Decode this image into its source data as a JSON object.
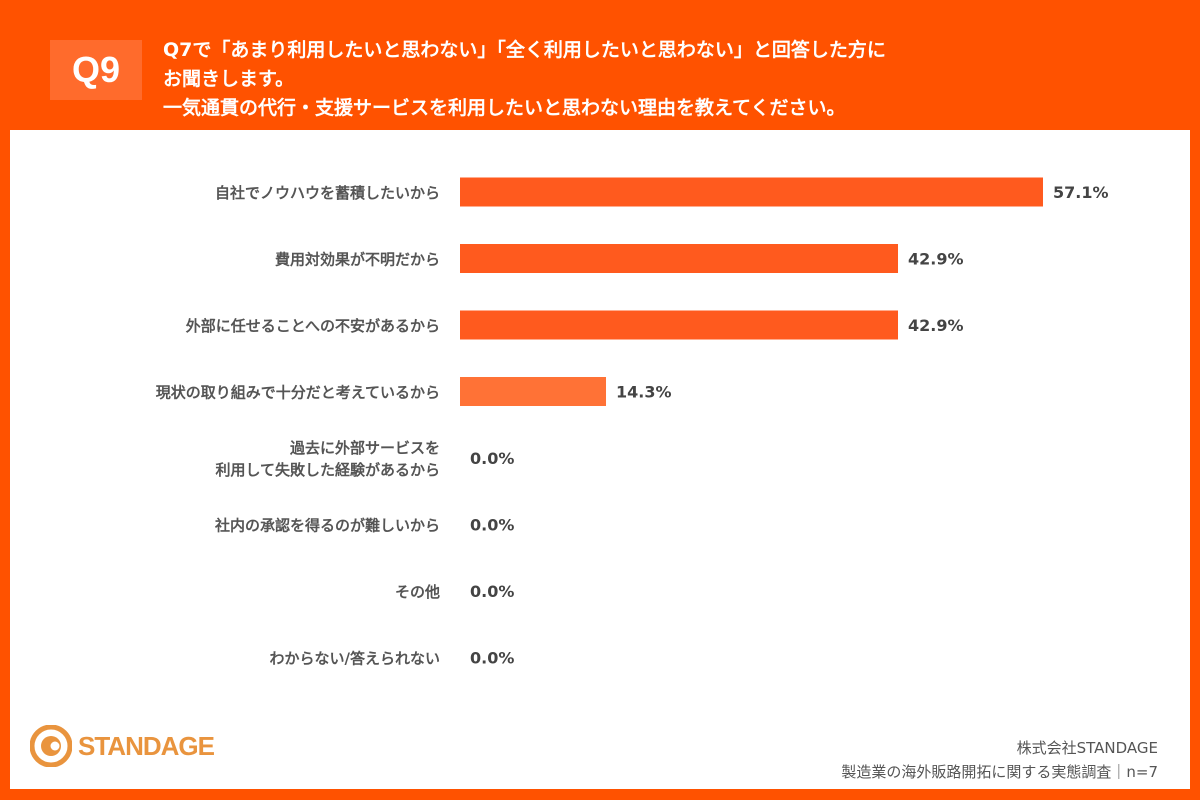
{
  "header": {
    "badge": "Q9",
    "lines": [
      "Q7で「あまり利用したいと思わない」「全く利用したいと思わない」と回答した方に",
      "お聞きします。",
      "一気通貫の代行・支援サービスを利用したいと思わない理由を教えてください。"
    ]
  },
  "footer": {
    "company": "株式会社STANDAGE",
    "survey": "製造業の海外販路開拓に関する実態調査｜n=7",
    "logo": "STANDAGE"
  },
  "colors": {
    "background": "#FF5200",
    "bar": "#FF5A1E",
    "bar_light": "#FF7236",
    "logo": "#E9943E"
  },
  "chart_data": {
    "type": "bar",
    "orientation": "horizontal",
    "categories": [
      [
        "自社でノウハウを蓄積したいから"
      ],
      [
        "費用対効果が不明だから"
      ],
      [
        "外部に任せることへの不安があるから"
      ],
      [
        "現状の取り組みで十分だと考えているから"
      ],
      [
        "過去に外部サービスを",
        "利用して失敗した経験があるから"
      ],
      [
        "社内の承認を得るのが難しいから"
      ],
      [
        "その他"
      ],
      [
        "わからない/答えられない"
      ]
    ],
    "values": [
      57.1,
      42.9,
      42.9,
      14.3,
      0.0,
      0.0,
      0.0,
      0.0
    ],
    "value_labels": [
      "57.1%",
      "42.9%",
      "42.9%",
      "14.3%",
      "0.0%",
      "0.0%",
      "0.0%",
      "0.0%"
    ],
    "xlim": [
      0,
      100
    ],
    "grid": false
  }
}
